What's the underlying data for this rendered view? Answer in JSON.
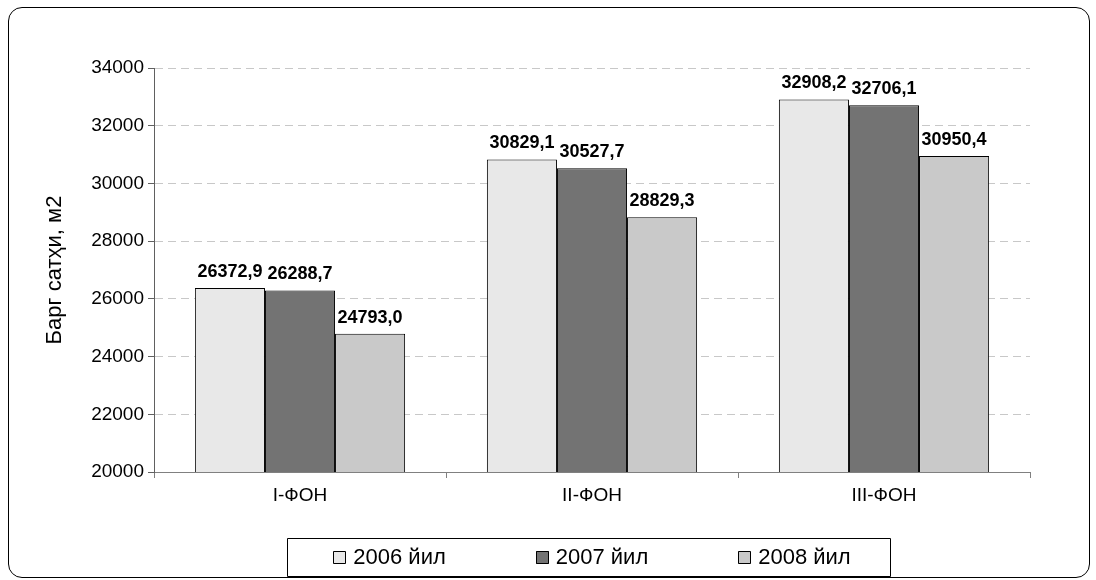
{
  "chart_data": {
    "type": "bar",
    "ylabel": "Барг сатҳи, м2",
    "categories": [
      "I-ФОН",
      "II-ФОН",
      "III-ФОН"
    ],
    "series": [
      {
        "name": "2006 йил",
        "color": "#e8e8e8",
        "values": [
          26372.9,
          30829.1,
          32908.2
        ],
        "value_labels": [
          "26372,9",
          "30829,1",
          "32908,2"
        ]
      },
      {
        "name": "2007 йил",
        "color": "#737373",
        "values": [
          26288.7,
          30527.7,
          32706.1
        ],
        "value_labels": [
          "26288,7",
          "30527,7",
          "32706,1"
        ]
      },
      {
        "name": "2008 йил",
        "color": "#c9c9c9",
        "values": [
          24793.0,
          28829.3,
          30950.4
        ],
        "value_labels": [
          "24793,0",
          "28829,3",
          "30950,4"
        ]
      }
    ],
    "ylim": [
      20000,
      34000
    ],
    "yticks": [
      20000,
      22000,
      24000,
      26000,
      28000,
      30000,
      32000,
      34000
    ],
    "grid": "y",
    "legend": "bottom"
  }
}
